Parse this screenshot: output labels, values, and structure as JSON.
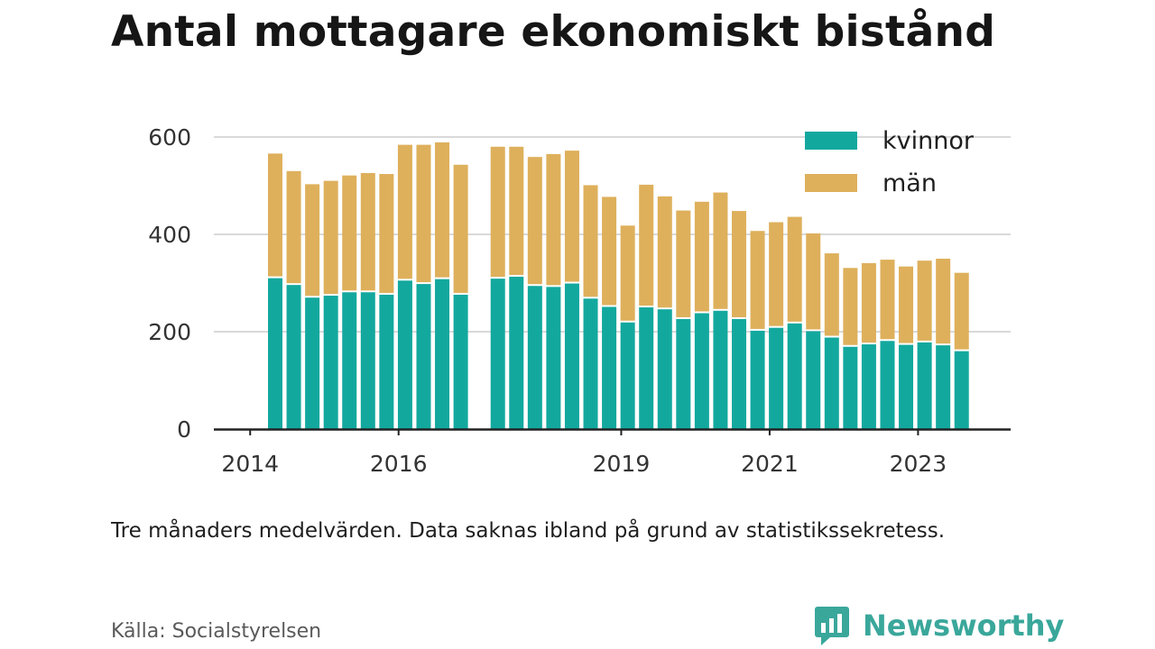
{
  "title": "Antal mottagare ekonomiskt bistånd",
  "note": "Tre månaders medelvärden. Data saknas ibland på grund av statistikssekretess.",
  "source": "Källa: Socialstyrelsen",
  "brand": {
    "name": "Newsworthy",
    "icon": "newsworthy-logo-icon"
  },
  "colors": {
    "kvinnor": "#13a89e",
    "man": "#deb05c",
    "grid": "#d9d9d9",
    "axis": "#222222"
  },
  "chart_data": {
    "type": "bar",
    "stacked": true,
    "ylim": [
      0,
      600
    ],
    "yticks": [
      0,
      200,
      400,
      600
    ],
    "xticks": [
      "2014",
      "2016",
      "2019",
      "2021",
      "2023"
    ],
    "legend": {
      "position": "top-right",
      "entries": [
        "kvinnor",
        "män"
      ]
    },
    "grid": "horizontal",
    "series": [
      {
        "name": "kvinnor",
        "values": [
          310,
          296,
          270,
          274,
          281,
          281,
          276,
          305,
          298,
          308,
          276,
          null,
          309,
          313,
          294,
          292,
          299,
          268,
          251,
          219,
          250,
          246,
          226,
          238,
          243,
          226,
          202,
          208,
          217,
          201,
          188,
          169,
          174,
          181,
          173,
          178,
          172,
          160
        ]
      },
      {
        "name": "män",
        "values": [
          256,
          234,
          233,
          236,
          240,
          245,
          248,
          279,
          286,
          281,
          267,
          null,
          271,
          267,
          265,
          273,
          273,
          233,
          226,
          199,
          252,
          232,
          223,
          229,
          243,
          222,
          205,
          217,
          219,
          201,
          173,
          162,
          167,
          167,
          161,
          168,
          178,
          161
        ]
      }
    ]
  }
}
